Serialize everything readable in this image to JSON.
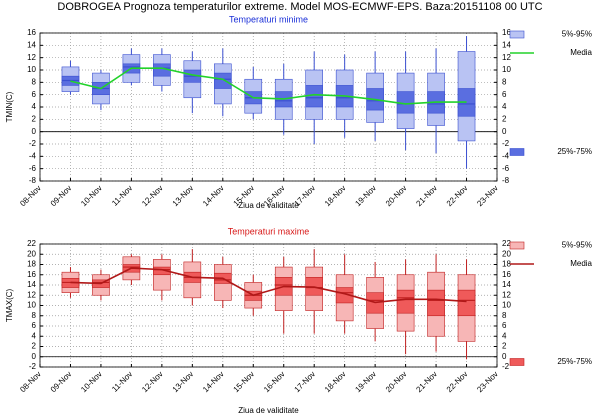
{
  "chart_data": [
    {
      "type": "box",
      "suptitle": "DOBROGEA  Prognoza temperaturilor extreme.  Model MOS-ECMWF-EPS. Baza:20151108 00 UTC",
      "title": "Temperaturi minime",
      "title_color": "#1a2fd8",
      "ylabel": "TMIN(C)",
      "xlabel": "Ziua de validitate",
      "categories": [
        "08-Nov",
        "09-Nov",
        "10-Nov",
        "11-Nov",
        "12-Nov",
        "13-Nov",
        "14-Nov",
        "15-Nov",
        "16-Nov",
        "17-Nov",
        "18-Nov",
        "19-Nov",
        "20-Nov",
        "21-Nov",
        "22-Nov",
        "23-Nov"
      ],
      "ylim": [
        -8,
        16
      ],
      "yticks": [
        -8,
        -6,
        -4,
        -2,
        0,
        2,
        4,
        6,
        8,
        10,
        12,
        14,
        16
      ],
      "grid": true,
      "range": {
        "color": "#3a4fd0",
        "min": [
          null,
          6,
          3.5,
          7.5,
          6.5,
          3,
          2.5,
          2,
          -0.5,
          -2,
          -1,
          -1.5,
          -3,
          -3.5,
          -6,
          null
        ],
        "max": [
          null,
          11.5,
          10,
          13.5,
          13.5,
          13,
          13.5,
          10.5,
          11,
          13,
          12.5,
          13,
          13,
          13.5,
          15.5,
          null
        ]
      },
      "median": [
        null,
        8.3,
        7,
        10.5,
        10.3,
        9,
        8.5,
        5.5,
        5,
        5.5,
        5.5,
        5,
        4.5,
        4.5,
        4.5,
        null
      ],
      "series": [
        {
          "name": "5%-95%",
          "color": "#b9c3f3",
          "low": [
            null,
            6.5,
            4.5,
            8,
            7.5,
            5.5,
            4.5,
            3,
            2,
            2,
            2,
            1.5,
            0.5,
            1,
            -1.5,
            null
          ],
          "high": [
            null,
            10.5,
            9.5,
            12.5,
            12.5,
            11.5,
            11,
            8.5,
            8.5,
            10,
            10,
            9.5,
            9.5,
            9.5,
            13,
            null
          ]
        },
        {
          "name": "Media",
          "color": "#22d22a",
          "values": [
            null,
            8.2,
            7,
            10.3,
            10.3,
            9.2,
            8.5,
            5.5,
            5.3,
            6,
            5.8,
            5.2,
            4.5,
            4.8,
            4.8,
            null
          ]
        },
        {
          "name": "25%-75%",
          "color": "#5a6ee0",
          "low": [
            null,
            7.5,
            6,
            9.5,
            9,
            8,
            7,
            4.5,
            4,
            4,
            4,
            3.5,
            3,
            3,
            2.5,
            null
          ],
          "high": [
            null,
            9,
            8,
            11,
            11,
            10,
            9.5,
            6.5,
            6.5,
            7.5,
            7.5,
            7,
            6.5,
            6.5,
            7,
            null
          ]
        }
      ]
    },
    {
      "type": "box",
      "title": "Temperaturi maxime",
      "title_color": "#d81a1a",
      "ylabel": "TMAX(C)",
      "xlabel": "Ziua de validitate",
      "categories": [
        "08-Nov",
        "09-Nov",
        "10-Nov",
        "11-Nov",
        "12-Nov",
        "13-Nov",
        "14-Nov",
        "15-Nov",
        "16-Nov",
        "17-Nov",
        "18-Nov",
        "19-Nov",
        "20-Nov",
        "21-Nov",
        "22-Nov",
        "23-Nov"
      ],
      "ylim": [
        -2,
        22
      ],
      "yticks": [
        -2,
        0,
        2,
        4,
        6,
        8,
        10,
        12,
        14,
        16,
        18,
        20,
        22
      ],
      "grid": true,
      "range": {
        "color": "#c02020",
        "min": [
          null,
          11.5,
          11,
          14,
          11,
          10,
          9.5,
          8,
          4.5,
          4.5,
          4.5,
          3,
          0.5,
          1,
          -0.5,
          null
        ],
        "max": [
          null,
          17.5,
          17,
          20,
          20,
          21,
          19.5,
          16,
          19.5,
          21,
          20,
          18.5,
          19,
          20,
          19,
          null
        ]
      },
      "median": [
        null,
        14.5,
        14.5,
        17.5,
        17,
        15.5,
        15,
        12,
        14,
        13.5,
        12.5,
        11,
        11.5,
        11,
        11,
        null
      ],
      "series": [
        {
          "name": "5%-95%",
          "color": "#f7b6b6",
          "low": [
            null,
            12.5,
            12,
            15,
            13,
            11.5,
            11,
            9.5,
            9,
            9,
            7,
            5.5,
            5,
            4,
            3,
            null
          ],
          "high": [
            null,
            16.5,
            16,
            19.5,
            19,
            18.5,
            18,
            14.5,
            17.5,
            17.5,
            16,
            15.5,
            16,
            16.5,
            16,
            null
          ]
        },
        {
          "name": "Media",
          "color": "#b01818",
          "values": [
            null,
            14.5,
            14.3,
            17.3,
            17,
            15.5,
            15.3,
            12,
            13.7,
            13.6,
            12.3,
            10.6,
            11.2,
            11.2,
            10.8,
            null
          ]
        },
        {
          "name": "25%-75%",
          "color": "#ef5a5a",
          "low": [
            null,
            13.5,
            13.5,
            16.5,
            16,
            14.5,
            14.3,
            11,
            12,
            12,
            10.5,
            8.5,
            8.5,
            8,
            8,
            null
          ],
          "high": [
            null,
            15.3,
            15,
            18,
            17.5,
            16.5,
            16.3,
            12.8,
            15.5,
            15.5,
            13.5,
            12.5,
            13,
            13,
            13,
            null
          ]
        }
      ]
    }
  ]
}
